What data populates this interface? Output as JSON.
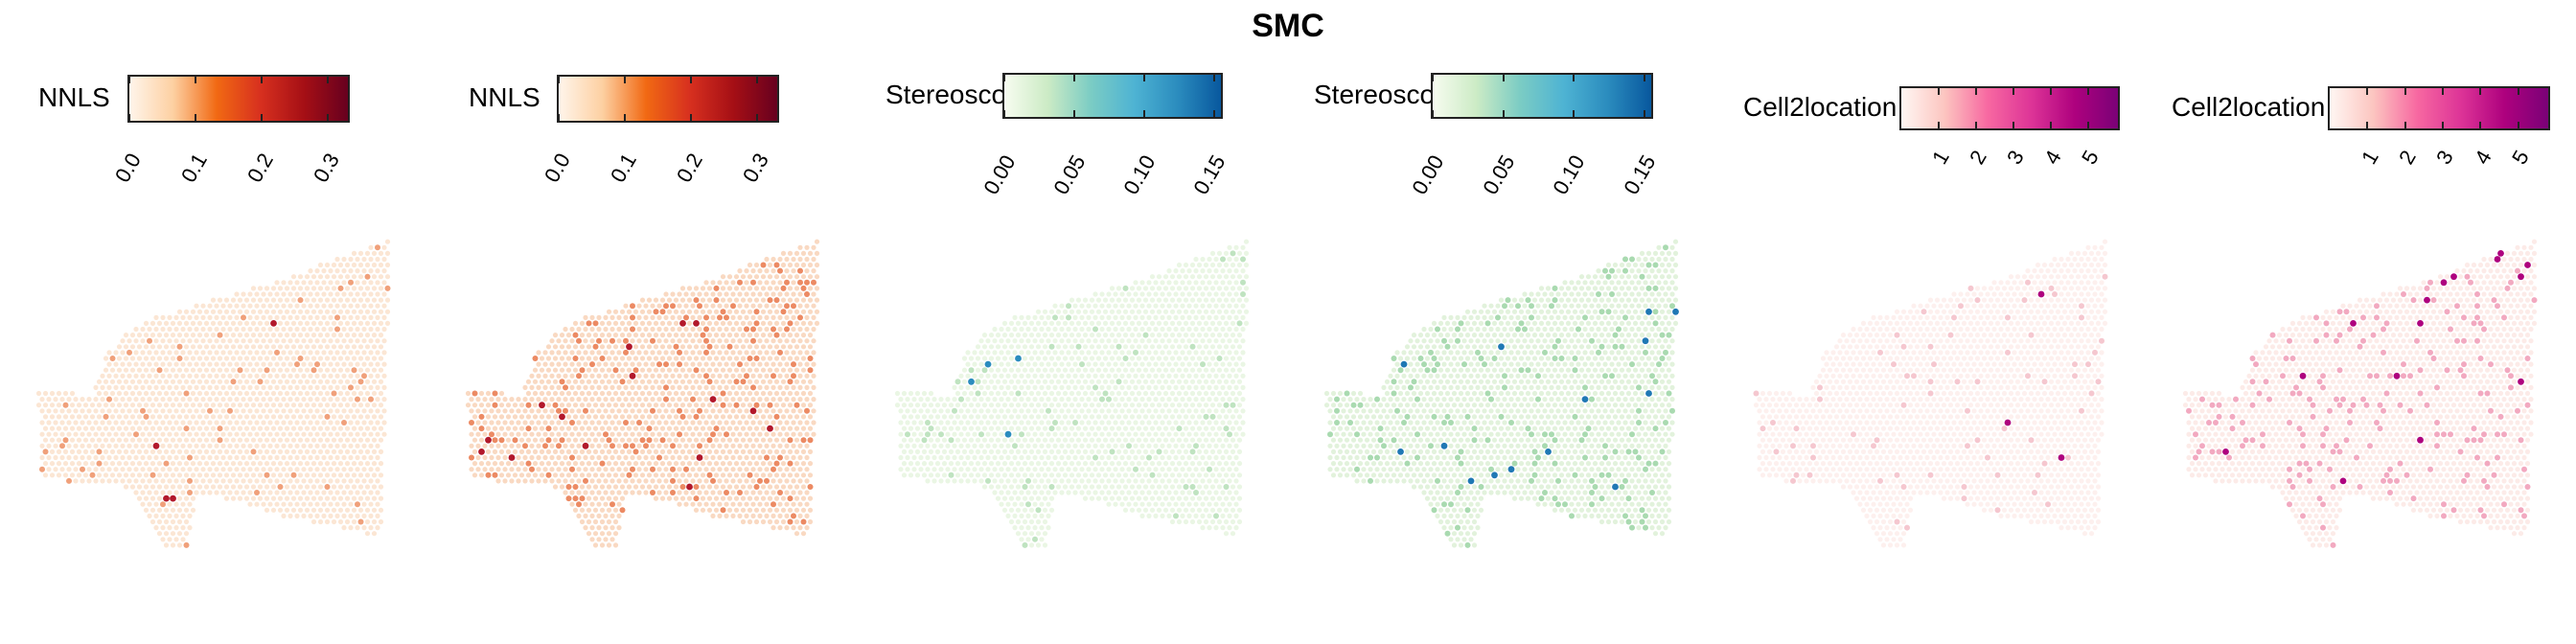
{
  "title": "SMC",
  "panels": [
    {
      "method": "NNLS",
      "colors": [
        "#fff5eb",
        "#fdd0a2",
        "#f16913",
        "#d7301f",
        "#a50f15",
        "#67001f"
      ],
      "ticks": [
        "0.0",
        "0.1",
        "0.2",
        "0.3"
      ],
      "tick_values": [
        0.0,
        0.1,
        0.2,
        0.3
      ],
      "range": [
        0.0,
        0.33
      ],
      "base_color": "#fbe6d4",
      "spot_color": "#f0a07a",
      "hot_color": "#b2182b"
    },
    {
      "method": "NNLS",
      "colors": [
        "#fff5eb",
        "#fdd0a2",
        "#f16913",
        "#d7301f",
        "#a50f15",
        "#67001f"
      ],
      "ticks": [
        "0.0",
        "0.1",
        "0.2",
        "0.3"
      ],
      "tick_values": [
        0.0,
        0.1,
        0.2,
        0.3
      ],
      "range": [
        0.0,
        0.33
      ],
      "base_color": "#f9d9c2",
      "spot_color": "#ec8a63",
      "hot_color": "#b2182b"
    },
    {
      "method": "Stereoscope",
      "colors": [
        "#f7fcf0",
        "#ccebc5",
        "#7bccc4",
        "#4eb3d3",
        "#2b8cbe",
        "#08589e"
      ],
      "ticks": [
        "0.00",
        "0.05",
        "0.10",
        "0.15"
      ],
      "tick_values": [
        0.0,
        0.05,
        0.1,
        0.15
      ],
      "range": [
        0.0,
        0.155
      ],
      "base_color": "#eaf6e4",
      "spot_color": "#bfe3c0",
      "hot_color": "#2b8cbe"
    },
    {
      "method": "Stereoscope",
      "colors": [
        "#f7fcf0",
        "#ccebc5",
        "#7bccc4",
        "#4eb3d3",
        "#2b8cbe",
        "#08589e"
      ],
      "ticks": [
        "0.00",
        "0.05",
        "0.10",
        "0.15"
      ],
      "tick_values": [
        0.0,
        0.05,
        0.1,
        0.15
      ],
      "range": [
        0.0,
        0.155
      ],
      "base_color": "#e2f2dc",
      "spot_color": "#a9dab0",
      "hot_color": "#1f78b4"
    },
    {
      "method": "Cell2location",
      "colors": [
        "#fff7f3",
        "#fcc5c0",
        "#f768a1",
        "#dd3497",
        "#ae017e",
        "#7a0177"
      ],
      "ticks": [
        "1",
        "2",
        "3",
        "4",
        "5"
      ],
      "tick_values": [
        1,
        2,
        3,
        4,
        5
      ],
      "range": [
        0,
        5.8
      ],
      "base_color": "#fdf0ee",
      "spot_color": "#f5c7cf",
      "hot_color": "#ae017e"
    },
    {
      "method": "Cell2location",
      "colors": [
        "#fff7f3",
        "#fcc5c0",
        "#f768a1",
        "#dd3497",
        "#ae017e",
        "#7a0177"
      ],
      "ticks": [
        "1",
        "2",
        "3",
        "4",
        "5"
      ],
      "tick_values": [
        1,
        2,
        3,
        4,
        5
      ],
      "range": [
        0,
        5.8
      ],
      "base_color": "#fcebe8",
      "spot_color": "#f2a9c0",
      "hot_color": "#ae017e"
    }
  ]
}
